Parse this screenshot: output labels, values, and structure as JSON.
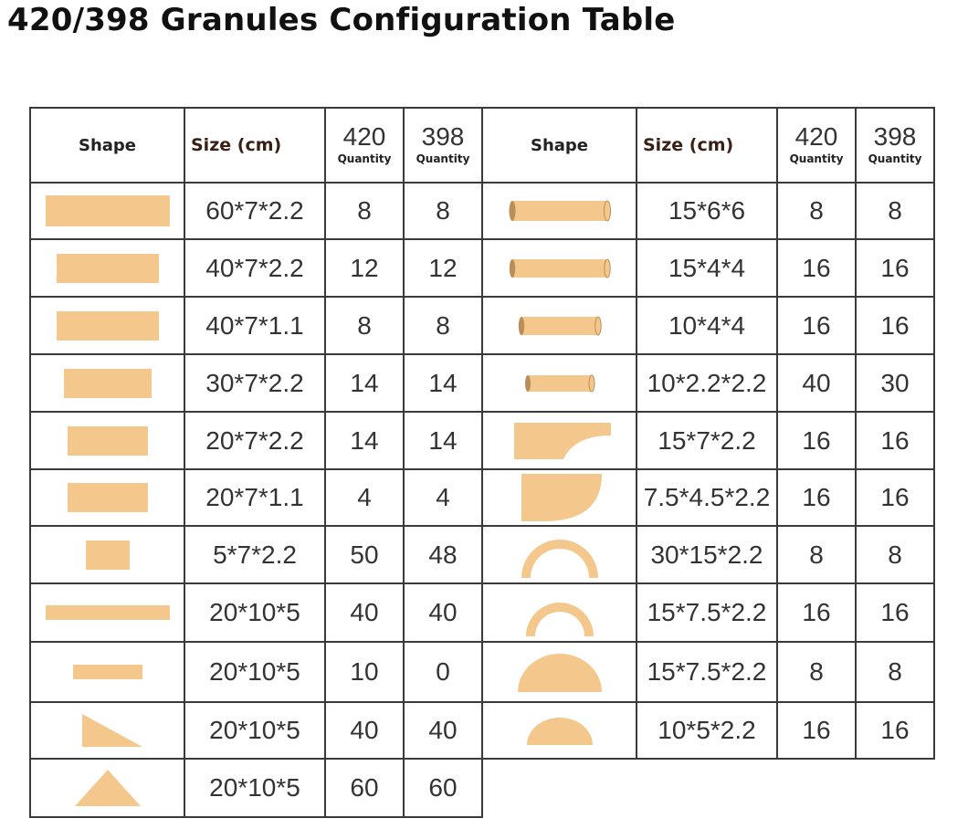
{
  "title": "420/398 Granules Configuration Table",
  "colors": {
    "wood": "#f4c88c",
    "wood_end": "#b98e5a",
    "border": "#3a3a3a"
  },
  "headers": {
    "shape": "Shape",
    "size": "Size (cm)",
    "q420": "420",
    "q398": "398",
    "quantity": "Quantity"
  },
  "left_rows": [
    {
      "shape": "long-plank-60",
      "size": "60*7*2.2",
      "q420": "8",
      "q398": "8"
    },
    {
      "shape": "plank-40",
      "size": "40*7*2.2",
      "q420": "12",
      "q398": "12"
    },
    {
      "shape": "plank-40-thin",
      "size": "40*7*1.1",
      "q420": "8",
      "q398": "8"
    },
    {
      "shape": "plank-30",
      "size": "30*7*2.2",
      "q420": "14",
      "q398": "14"
    },
    {
      "shape": "plank-20",
      "size": "20*7*2.2",
      "q420": "14",
      "q398": "14"
    },
    {
      "shape": "plank-20-thin",
      "size": "20*7*1.1",
      "q420": "4",
      "q398": "4"
    },
    {
      "shape": "small-square",
      "size": "5*7*2.2",
      "q420": "50",
      "q398": "48"
    },
    {
      "shape": "long-thin-bar",
      "size": "20*10*5",
      "q420": "40",
      "q398": "40"
    },
    {
      "shape": "short-thin-bar",
      "size": "20*10*5",
      "q420": "10",
      "q398": "0"
    },
    {
      "shape": "right-triangle",
      "size": "20*10*5",
      "q420": "40",
      "q398": "40"
    },
    {
      "shape": "isosceles-triangle",
      "size": "20*10*5",
      "q420": "60",
      "q398": "60"
    }
  ],
  "right_rows": [
    {
      "shape": "cylinder-15x6",
      "size": "15*6*6",
      "q420": "8",
      "q398": "8"
    },
    {
      "shape": "cylinder-15x4",
      "size": "15*4*4",
      "q420": "16",
      "q398": "16"
    },
    {
      "shape": "cylinder-10x4",
      "size": "10*4*4",
      "q420": "16",
      "q398": "16"
    },
    {
      "shape": "cylinder-10x2",
      "size": "10*2.2*2.2",
      "q420": "40",
      "q398": "30"
    },
    {
      "shape": "concave-block",
      "size": "15*7*2.2",
      "q420": "16",
      "q398": "16"
    },
    {
      "shape": "quarter-circle",
      "size": "7.5*4.5*2.2",
      "q420": "16",
      "q398": "16"
    },
    {
      "shape": "large-arch",
      "size": "30*15*2.2",
      "q420": "8",
      "q398": "8"
    },
    {
      "shape": "small-arch",
      "size": "15*7.5*2.2",
      "q420": "16",
      "q398": "16"
    },
    {
      "shape": "large-semicircle",
      "size": "15*7.5*2.2",
      "q420": "8",
      "q398": "8"
    },
    {
      "shape": "small-semicircle",
      "size": "10*5*2.2",
      "q420": "16",
      "q398": "16"
    }
  ]
}
